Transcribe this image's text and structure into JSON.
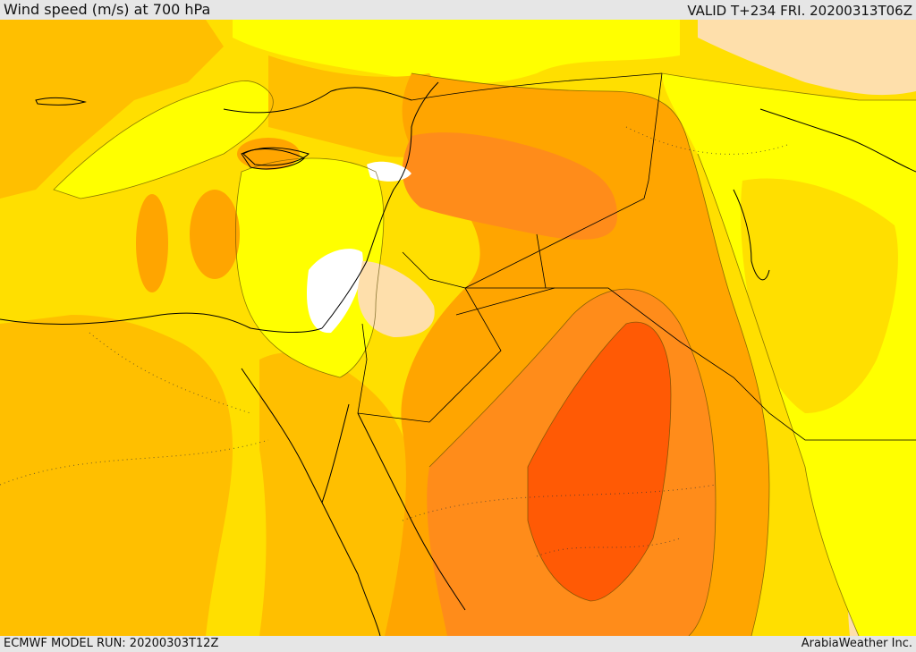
{
  "header": {
    "title": "Wind speed (m/s) at 700 hPa",
    "valid": "VALID T+234 FRI. 20200313T06Z"
  },
  "footer": {
    "model_run": "ECMWF MODEL RUN: 20200303T12Z",
    "credit": "ArabiaWeather Inc."
  },
  "colors": {
    "white": "#ffffff",
    "pale": "#fedfab",
    "yellow": "#ffff00",
    "gold": "#ffdf00",
    "amber": "#ffbf00",
    "orange_light": "#ffa500",
    "orange": "#ff8c1a",
    "orange_dark": "#ff6a0d",
    "red_orange": "#ff5a05",
    "coast": "#000000",
    "border": "#000000"
  }
}
